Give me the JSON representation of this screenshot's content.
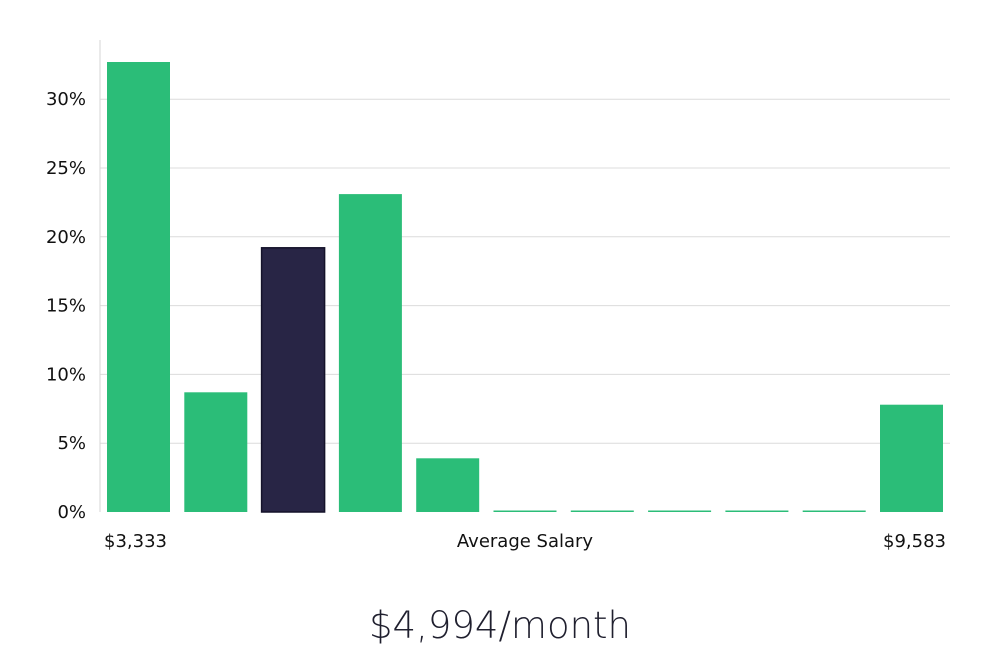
{
  "chart_data": {
    "type": "bar",
    "categories": [
      "1",
      "2",
      "3",
      "4",
      "5",
      "6",
      "7",
      "8",
      "9",
      "10",
      "11"
    ],
    "values": [
      32.7,
      8.7,
      19.2,
      23.1,
      3.9,
      0.1,
      0.1,
      0.1,
      0.1,
      0.1,
      7.8
    ],
    "highlight_index": 2,
    "y_ticks": [
      0,
      5,
      10,
      15,
      20,
      25,
      30
    ],
    "y_tick_labels": [
      "0%",
      "5%",
      "10%",
      "15%",
      "20%",
      "25%",
      "30%"
    ],
    "ylim": [
      0,
      34
    ],
    "grid": true,
    "x_min_label": "$3,333",
    "x_max_label": "$9,583",
    "xlabel": "Average Salary",
    "colors": {
      "bar": "#2bbd78",
      "highlight": "#282545",
      "grid": "#dcdcdc",
      "axis": "#d6d6d6"
    }
  },
  "headline": "$4,994/month"
}
